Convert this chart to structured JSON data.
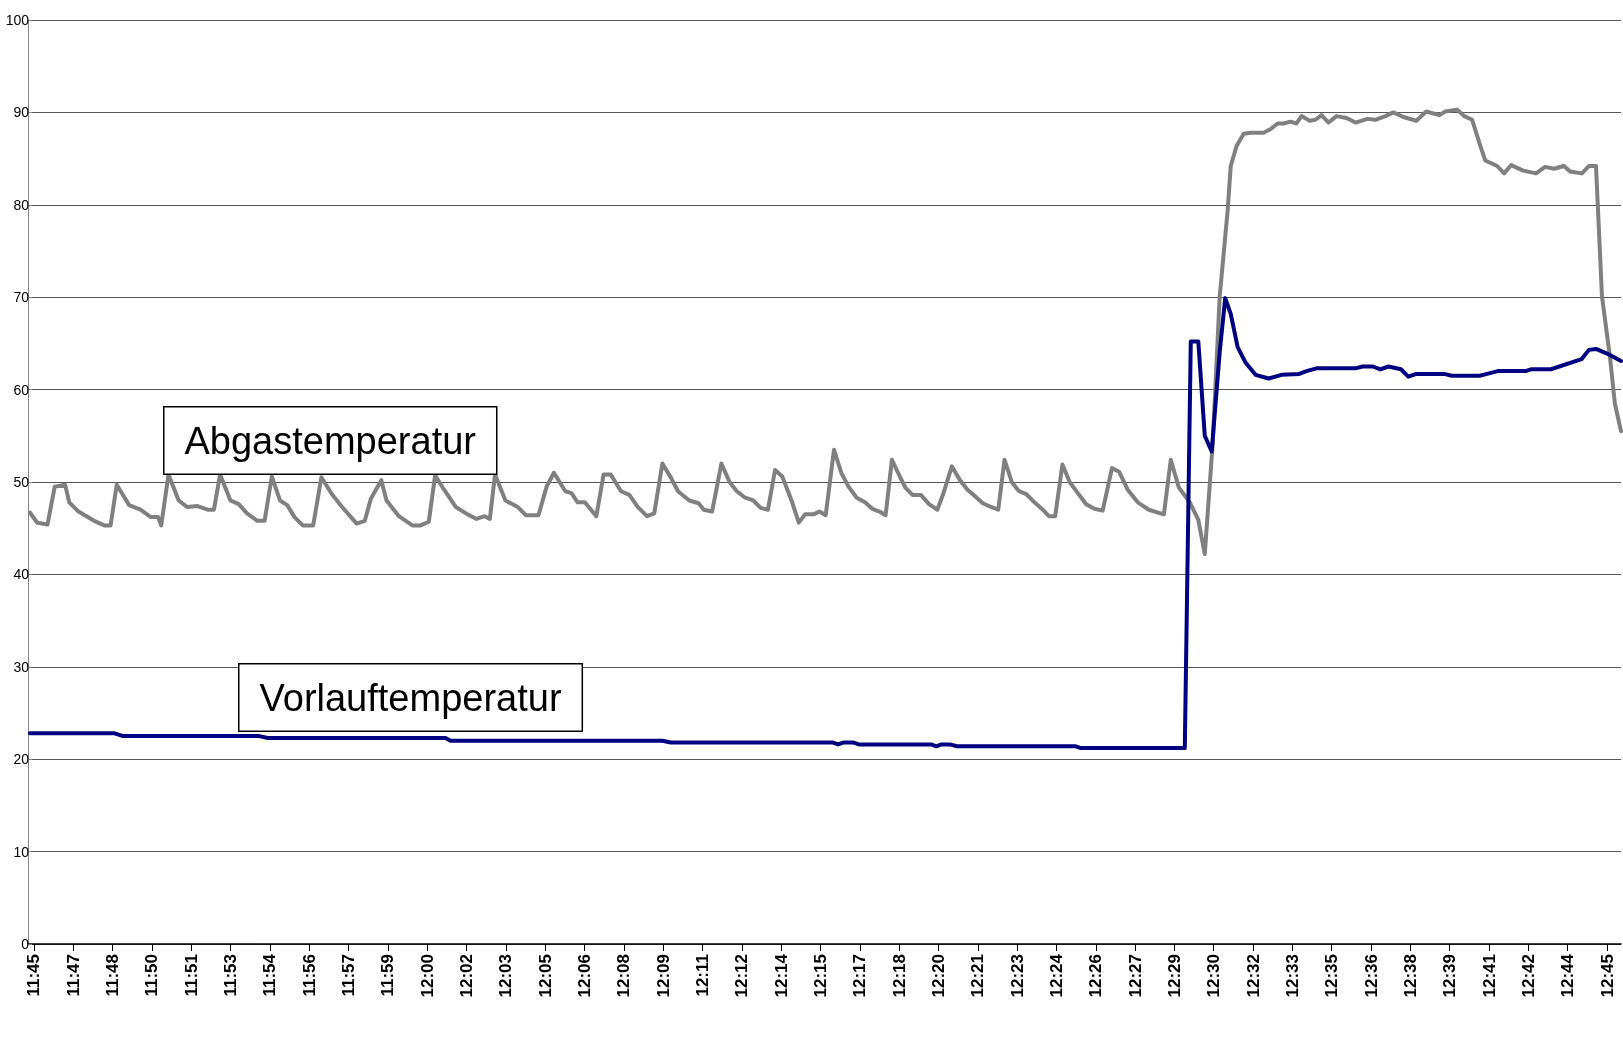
{
  "chart_data": {
    "type": "line",
    "xlim": [
      11.7462,
      12.7589
    ],
    "xticks": [
      {
        "value": 11.75,
        "label": "11:45"
      },
      {
        "value": 11.775,
        "label": "11:47"
      },
      {
        "value": 11.8,
        "label": "11:48"
      },
      {
        "value": 11.825,
        "label": "11:50"
      },
      {
        "value": 11.85,
        "label": "11:51"
      },
      {
        "value": 11.875,
        "label": "11:53"
      },
      {
        "value": 11.9,
        "label": "11:54"
      },
      {
        "value": 11.925,
        "label": "11:56"
      },
      {
        "value": 11.95,
        "label": "11:57"
      },
      {
        "value": 11.975,
        "label": "11:59"
      },
      {
        "value": 12.0,
        "label": "12:00"
      },
      {
        "value": 12.025,
        "label": "12:02"
      },
      {
        "value": 12.05,
        "label": "12:03"
      },
      {
        "value": 12.075,
        "label": "12:05"
      },
      {
        "value": 12.1,
        "label": "12:06"
      },
      {
        "value": 12.125,
        "label": "12:08"
      },
      {
        "value": 12.15,
        "label": "12:09"
      },
      {
        "value": 12.175,
        "label": "12:11"
      },
      {
        "value": 12.2,
        "label": "12:12"
      },
      {
        "value": 12.225,
        "label": "12:14"
      },
      {
        "value": 12.25,
        "label": "12:15"
      },
      {
        "value": 12.275,
        "label": "12:17"
      },
      {
        "value": 12.3,
        "label": "12:18"
      },
      {
        "value": 12.325,
        "label": "12:20"
      },
      {
        "value": 12.35,
        "label": "12:21"
      },
      {
        "value": 12.375,
        "label": "12:23"
      },
      {
        "value": 12.4,
        "label": "12:24"
      },
      {
        "value": 12.425,
        "label": "12:26"
      },
      {
        "value": 12.45,
        "label": "12:27"
      },
      {
        "value": 12.475,
        "label": "12:29"
      },
      {
        "value": 12.5,
        "label": "12:30"
      },
      {
        "value": 12.525,
        "label": "12:32"
      },
      {
        "value": 12.55,
        "label": "12:33"
      },
      {
        "value": 12.575,
        "label": "12:35"
      },
      {
        "value": 12.6,
        "label": "12:36"
      },
      {
        "value": 12.625,
        "label": "12:38"
      },
      {
        "value": 12.65,
        "label": "12:39"
      },
      {
        "value": 12.675,
        "label": "12:41"
      },
      {
        "value": 12.7,
        "label": "12:42"
      },
      {
        "value": 12.725,
        "label": "12:44"
      },
      {
        "value": 12.75,
        "label": "12:45"
      }
    ],
    "ylim": [
      0,
      100
    ],
    "yticks": [
      0,
      10,
      20,
      30,
      40,
      50,
      60,
      70,
      80,
      90,
      100
    ],
    "grid": "y",
    "marker": "none",
    "line_style": "solid",
    "series": [
      {
        "name": "Abgastemperatur",
        "color": "#808080",
        "x": [
          11.7474,
          11.752,
          11.7586,
          11.7632,
          11.7698,
          11.7724,
          11.7783,
          11.7882,
          11.7947,
          11.7987,
          11.8026,
          11.8105,
          11.8177,
          11.8243,
          11.8289,
          11.8309,
          11.8355,
          11.842,
          11.8473,
          11.8539,
          11.8604,
          11.8644,
          11.8683,
          11.8749,
          11.8802,
          11.8854,
          11.892,
          11.8966,
          11.9012,
          11.9064,
          11.911,
          11.9156,
          11.9209,
          11.9275,
          11.9327,
          11.9393,
          11.9459,
          11.9551,
          11.9603,
          11.9642,
          11.9708,
          11.9741,
          11.982,
          11.9905,
          11.9958,
          12.001,
          12.005,
          12.0102,
          12.0181,
          12.0247,
          12.0313,
          12.0365,
          12.0398,
          12.0431,
          12.0497,
          12.0575,
          12.0628,
          12.0707,
          12.0759,
          12.0805,
          12.0878,
          12.0917,
          12.0956,
          12.1002,
          12.1075,
          12.1121,
          12.1167,
          12.1232,
          12.1285,
          12.1338,
          12.1397,
          12.1443,
          12.1495,
          12.1548,
          12.1594,
          12.1666,
          12.1725,
          12.1758,
          12.1811,
          12.187,
          12.1922,
          12.1968,
          12.2021,
          12.2073,
          12.2119,
          12.2166,
          12.2211,
          12.2257,
          12.2316,
          12.2362,
          12.2402,
          12.2454,
          12.2494,
          12.2533,
          12.2586,
          12.2632,
          12.2678,
          12.273,
          12.2783,
          12.2829,
          12.2875,
          12.2914,
          12.2954,
          12.2993,
          12.3039,
          12.3085,
          12.3138,
          12.319,
          12.3243,
          12.3282,
          12.3335,
          12.3387,
          12.3433,
          12.3479,
          12.3532,
          12.3584,
          12.363,
          12.367,
          12.3716,
          12.3762,
          12.3808,
          12.386,
          12.3913,
          12.3952,
          12.3992,
          12.4038,
          12.4084,
          12.4136,
          12.4189,
          12.4241,
          12.4294,
          12.4353,
          12.4399,
          12.4452,
          12.4517,
          12.4587,
          12.4683,
          12.4727,
          12.4778,
          12.4848,
          12.4902,
          12.4943,
          12.4993,
          12.5038,
          12.5089,
          12.5108,
          12.5146,
          12.519,
          12.5235,
          12.5317,
          12.5362,
          12.5406,
          12.5444,
          12.5488,
          12.5526,
          12.5558,
          12.5609,
          12.5647,
          12.5685,
          12.573,
          12.578,
          12.5844,
          12.5901,
          12.5977,
          12.6028,
          12.6091,
          12.6142,
          12.6205,
          12.6288,
          12.6351,
          12.6434,
          12.6472,
          12.6548,
          12.6592,
          12.6643,
          12.6694,
          12.6726,
          12.6802,
          12.6846,
          12.6891,
          12.6967,
          12.7049,
          12.7106,
          12.7163,
          12.7227,
          12.7265,
          12.7341,
          12.7385,
          12.743,
          12.7468,
          12.7519,
          12.755,
          12.7589
        ],
        "values": [
          46.7,
          45.6,
          45.4,
          49.5,
          49.7,
          47.8,
          46.8,
          45.8,
          45.3,
          45.3,
          49.7,
          47.5,
          47.0,
          46.2,
          46.2,
          45.3,
          50.8,
          48.0,
          47.3,
          47.4,
          47.0,
          47.0,
          50.8,
          48.0,
          47.6,
          46.6,
          45.8,
          45.8,
          50.6,
          48.0,
          47.5,
          46.2,
          45.3,
          45.3,
          50.5,
          48.7,
          47.3,
          45.5,
          45.8,
          48.2,
          50.2,
          48.0,
          46.3,
          45.3,
          45.3,
          45.7,
          50.7,
          49.3,
          47.3,
          46.6,
          46.0,
          46.3,
          46.0,
          50.8,
          48.0,
          47.3,
          46.4,
          46.4,
          49.5,
          51.0,
          49.0,
          48.8,
          47.8,
          47.8,
          46.3,
          50.8,
          50.8,
          49.0,
          48.6,
          47.3,
          46.3,
          46.6,
          52.0,
          50.5,
          49.0,
          48.0,
          47.7,
          47.0,
          46.8,
          52.0,
          50.0,
          49.0,
          48.3,
          48.0,
          47.2,
          47.0,
          51.3,
          50.6,
          48.0,
          45.6,
          46.5,
          46.5,
          46.8,
          46.4,
          53.5,
          51.0,
          49.5,
          48.3,
          47.8,
          47.1,
          46.8,
          46.4,
          52.4,
          51.0,
          49.4,
          48.6,
          48.6,
          47.6,
          47.0,
          48.8,
          51.7,
          50.2,
          49.2,
          48.5,
          47.7,
          47.3,
          47.0,
          52.4,
          50.0,
          49.0,
          48.7,
          47.8,
          47.0,
          46.3,
          46.3,
          51.9,
          50.0,
          48.8,
          47.6,
          47.1,
          46.9,
          51.5,
          51.1,
          49.2,
          47.8,
          47.0,
          46.5,
          52.4,
          49.4,
          47.8,
          45.9,
          42.2,
          54.1,
          70.1,
          79.5,
          84.2,
          86.4,
          87.7,
          87.8,
          87.8,
          88.2,
          88.8,
          88.8,
          89.0,
          88.8,
          89.6,
          89.1,
          89.2,
          89.7,
          88.9,
          89.6,
          89.4,
          88.9,
          89.3,
          89.2,
          89.6,
          90.0,
          89.5,
          89.1,
          90.1,
          89.7,
          90.1,
          90.3,
          89.6,
          89.2,
          86.4,
          84.8,
          84.2,
          83.4,
          84.3,
          83.7,
          83.4,
          84.1,
          83.9,
          84.2,
          83.6,
          83.4,
          84.2,
          84.2,
          70.1,
          63.5,
          58.5,
          55.5
        ]
      },
      {
        "name": "Vorlauftemperatur",
        "color": "#000080",
        "x": [
          11.7474,
          11.8013,
          11.8066,
          11.8933,
          11.8986,
          12.0116,
          12.0148,
          12.1495,
          12.1548,
          12.2579,
          12.2612,
          12.2645,
          12.2711,
          12.2744,
          12.3204,
          12.3236,
          12.3269,
          12.3322,
          12.3368,
          12.4123,
          12.4156,
          12.4816,
          12.4854,
          12.4902,
          12.4943,
          12.4987,
          12.5038,
          12.5073,
          12.5108,
          12.5152,
          12.5203,
          12.5266,
          12.5349,
          12.5431,
          12.5543,
          12.559,
          12.5653,
          12.5901,
          12.5945,
          12.6012,
          12.6059,
          12.611,
          12.619,
          12.6237,
          12.6288,
          12.6465,
          12.6513,
          12.6691,
          12.6738,
          12.6805,
          12.6983,
          12.7016,
          12.7144,
          12.7339,
          12.7385,
          12.743,
          12.75,
          12.7589
        ],
        "values": [
          22.8,
          22.8,
          22.5,
          22.5,
          22.3,
          22.3,
          22.0,
          22.0,
          21.8,
          21.8,
          21.6,
          21.8,
          21.8,
          21.6,
          21.6,
          21.4,
          21.6,
          21.6,
          21.4,
          21.4,
          21.2,
          21.2,
          65.2,
          65.2,
          55.0,
          53.3,
          64.1,
          69.9,
          68.2,
          64.6,
          62.9,
          61.6,
          61.2,
          61.6,
          61.7,
          62.0,
          62.3,
          62.3,
          62.5,
          62.5,
          62.2,
          62.5,
          62.2,
          61.4,
          61.7,
          61.7,
          61.5,
          61.5,
          61.7,
          62.0,
          62.0,
          62.2,
          62.2,
          63.3,
          64.3,
          64.4,
          63.9,
          63.1
        ]
      }
    ]
  }
}
